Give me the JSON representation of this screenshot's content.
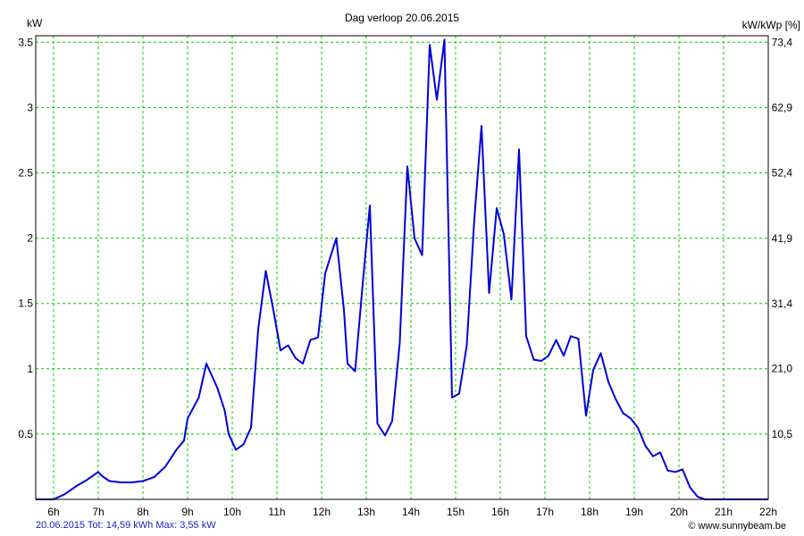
{
  "chart_data": {
    "type": "line",
    "title": "Dag  verloop 20.06.2015",
    "ylabel_left": "kW",
    "ylabel_right": "kW/kWp [%]",
    "x_ticks": [
      "6h",
      "7h",
      "8h",
      "9h",
      "10h",
      "11h",
      "12h",
      "13h",
      "14h",
      "15h",
      "16h",
      "17h",
      "18h",
      "19h",
      "20h",
      "21h",
      "22h"
    ],
    "xlim": [
      5.6,
      22
    ],
    "ylim": [
      0,
      3.55
    ],
    "y_ticks": [
      0.5,
      1,
      1.5,
      2,
      2.5,
      3,
      3.5
    ],
    "y_tick_labels": [
      "0.5",
      "1",
      "1.5",
      "2",
      "2.5",
      "3",
      "3.5"
    ],
    "y2_ticks": [
      10.5,
      21.0,
      31.4,
      41.9,
      52.4,
      62.9,
      73.4
    ],
    "y2_tick_labels": [
      "10,5",
      "21,0",
      "31,4",
      "41,9",
      "52,4",
      "62,9",
      "73,4"
    ],
    "grid": true,
    "colors": {
      "line": "#0000dd",
      "grid": "#00cc00",
      "frame": "#000000"
    },
    "series": [
      {
        "x": [
          5.6,
          6.0,
          6.25,
          6.5,
          6.75,
          7.0,
          7.08,
          7.25,
          7.5,
          7.75,
          8.0,
          8.25,
          8.5,
          8.75,
          8.92,
          9.0,
          9.25,
          9.42,
          9.67,
          9.83,
          9.92,
          10.08,
          10.25,
          10.42,
          10.58,
          10.75,
          10.92,
          11.08,
          11.25,
          11.42,
          11.58,
          11.75,
          11.92,
          12.08,
          12.33,
          12.5,
          12.58,
          12.75,
          12.92,
          13.08,
          13.25,
          13.42,
          13.58,
          13.75,
          13.92,
          14.08,
          14.25,
          14.42,
          14.58,
          14.75,
          14.92,
          15.08,
          15.25,
          15.42,
          15.58,
          15.75,
          15.92,
          16.08,
          16.25,
          16.42,
          16.58,
          16.75,
          16.92,
          17.08,
          17.25,
          17.42,
          17.58,
          17.75,
          17.92,
          18.08,
          18.25,
          18.42,
          18.58,
          18.75,
          18.92,
          19.08,
          19.25,
          19.42,
          19.58,
          19.75,
          19.92,
          20.08,
          20.25,
          20.42,
          20.58,
          20.75,
          21.0,
          21.5,
          22.0
        ],
        "y": [
          0,
          0,
          0.04,
          0.1,
          0.15,
          0.21,
          0.18,
          0.14,
          0.13,
          0.13,
          0.14,
          0.17,
          0.25,
          0.38,
          0.45,
          0.62,
          0.78,
          1.04,
          0.85,
          0.68,
          0.5,
          0.38,
          0.42,
          0.55,
          1.3,
          1.75,
          1.45,
          1.14,
          1.18,
          1.08,
          1.04,
          1.22,
          1.24,
          1.73,
          2.0,
          1.45,
          1.04,
          0.98,
          1.65,
          2.25,
          0.58,
          0.49,
          0.6,
          1.2,
          2.55,
          2.0,
          1.87,
          3.48,
          3.06,
          3.52,
          0.78,
          0.81,
          1.18,
          2.15,
          2.86,
          1.58,
          2.23,
          2.03,
          1.53,
          2.68,
          1.25,
          1.07,
          1.06,
          1.1,
          1.22,
          1.1,
          1.25,
          1.23,
          0.64,
          0.99,
          1.12,
          0.9,
          0.77,
          0.66,
          0.62,
          0.55,
          0.41,
          0.33,
          0.36,
          0.22,
          0.21,
          0.23,
          0.09,
          0.02,
          0,
          0,
          0,
          0,
          0
        ]
      }
    ]
  },
  "footer": {
    "summary": "20.06.2015 Tot: 14,59 kWh Max: 3,55 kW",
    "credit": "© www.sunnybeam.be"
  }
}
